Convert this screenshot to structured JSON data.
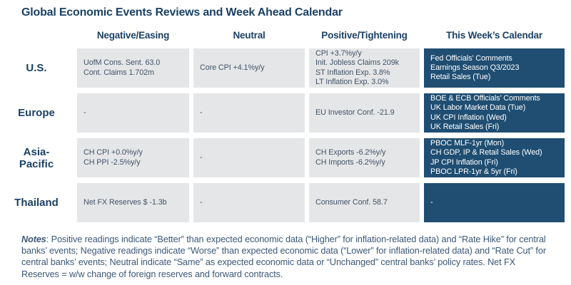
{
  "title": "Global Economic Events Reviews and Week Ahead Calendar",
  "theme": {
    "navy": "#1F4E72",
    "heading": "#1B4165",
    "cell_bg": "#E5E6E7",
    "cell_text": "#44546A",
    "notes_text": "#3C5877"
  },
  "columns": {
    "negative": "Negative/Easing",
    "neutral": "Neutral",
    "positive": "Positive/Tightening",
    "calendar": "This Week’s Calendar"
  },
  "rows": [
    {
      "label": "U.S.",
      "cells": {
        "negative": "UofM Cons. Sent. 63.0\nCont. Claims 1.702m",
        "neutral": "Core CPI +4.1%y/y",
        "positive": "CPI +3.7%y/y\nInit. Jobless Claims 209k\nST Inflation Exp. 3.8%\nLT Inflation Exp. 3.0%",
        "calendar": "Fed Officials’ Comments\nEarnings Season Q3/2023\nRetail Sales (Tue)"
      }
    },
    {
      "label": "Europe",
      "cells": {
        "negative": "-",
        "neutral": "-",
        "positive": "EU Investor Conf. -21.9",
        "calendar": "BOE & ECB Officials’ Comments\nUK Labor Market Data (Tue)\nUK CPI Inflation (Wed)\nUK Retail Sales (Fri)"
      }
    },
    {
      "label": "Asia-Pacific",
      "cells": {
        "negative": "CH CPI +0.0%y/y\nCH PPI -2.5%y/y",
        "neutral": "-",
        "positive": "CH Exports -6.2%y/y\nCH Imports -6.2%y/y",
        "calendar": "PBOC MLF-1yr (Mon)\nCH GDP, IP & Retail Sales (Wed)\nJP CPI Inflation (Fri)\nPBOC LPR-1yr & 5yr (Fri)"
      }
    },
    {
      "label": "Thailand",
      "cells": {
        "negative": "Net FX Reserves $ -1.3b",
        "neutral": "-",
        "positive": "Consumer Conf. 58.7",
        "calendar": "-"
      }
    }
  ],
  "notes": {
    "label": "Notes",
    "text": ": Positive readings indicate “Better” than expected economic data (“Higher” for inflation-related data) and “Rate Hike” for central banks’ events; Negative readings indicate “Worse” than expected economic data (“Lower” for inflation-related data) and “Rate Cut” for central banks’ events; Neutral indicate “Same” as expected economic data or “Unchanged” central banks’ policy rates. Net FX Reserves = w/w change of foreign reserves and forward contracts."
  }
}
